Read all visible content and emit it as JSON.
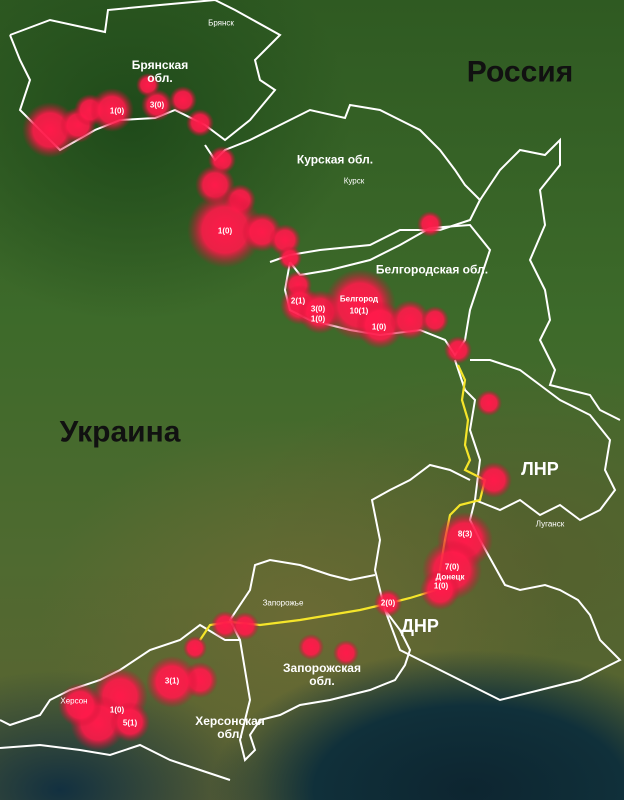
{
  "countries": {
    "russia": "Россия",
    "ukraine": "Украина"
  },
  "regions": {
    "bryansk": "Брянская\nобл.",
    "kursk": "Курская обл.",
    "belgorod": "Белгородская обл.",
    "lnr": "ЛНР",
    "dnr": "ДНР",
    "zaporozhye": "Запорожская\nобл.",
    "kherson": "Херсонская\nобл."
  },
  "cities": {
    "bryansk": "Брянск",
    "kursk": "Курск",
    "belgorod": "Белгород",
    "lugansk": "Луганск",
    "donetsk": "Донецк",
    "zaporozhye": "Запорожье",
    "kherson": "Херсон"
  },
  "incident_counts": {
    "bryansk_1": "1(0)",
    "bryansk_2": "3(0)",
    "kursk_1": "1(0)",
    "belgorod_1": "2(1)",
    "belgorod_2": "3(0)",
    "belgorod_3": "1(0)",
    "belgorod_city": "10(1)",
    "belgorod_4": "1(0)",
    "donetsk_1": "8(3)",
    "donetsk_2": "7(0)",
    "donetsk_city": "1(0)",
    "donetsk_3": "2(0)",
    "kherson_1": "3(1)",
    "kherson_2": "1(0)",
    "kherson_3": "5(1)"
  },
  "colors": {
    "hotspot": "#ff1744",
    "border": "#ffffff",
    "front_line": "#f5e52a"
  }
}
